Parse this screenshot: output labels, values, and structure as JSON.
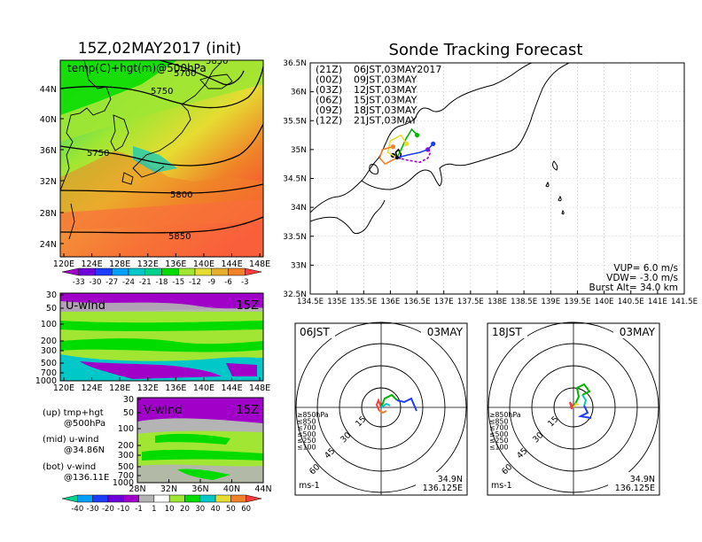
{
  "left": {
    "title": "15Z,02MAY2017 (init)",
    "map_label": "temp(C)+hgt(m)@500hPa",
    "contour_labels": [
      "5700",
      "5750",
      "5750",
      "5800",
      "5850",
      "5850"
    ],
    "lat_ticks": [
      "44N",
      "40N",
      "36N",
      "32N",
      "28N",
      "24N"
    ],
    "lon_ticks": [
      "120E",
      "124E",
      "128E",
      "132E",
      "136E",
      "140E",
      "144E",
      "148E"
    ],
    "temp_colorbar": [
      "-33",
      "-30",
      "-27",
      "-24",
      "-21",
      "-18",
      "-15",
      "-12",
      "-9",
      "-6",
      "-3"
    ],
    "temp_colors": [
      "#a000c8",
      "#6e00dc",
      "#1e3cff",
      "#00a0ff",
      "#00c8c8",
      "#00d28c",
      "#00dc00",
      "#a0e632",
      "#e6dc32",
      "#e6af2d",
      "#f08228",
      "#fa3c3c"
    ],
    "uwind_label": "U-wind",
    "uwind_time": "15Z",
    "uwind_p_ticks": [
      "30",
      "50",
      "100",
      "200",
      "300",
      "500",
      "700",
      "1000"
    ],
    "vwind_label": "V-wind",
    "vwind_time": "15Z",
    "vwind_p_ticks": [
      "30",
      "50",
      "100",
      "200",
      "300",
      "500",
      "700",
      "1000"
    ],
    "vwind_lat_ticks": [
      "28N",
      "32N",
      "36N",
      "40N",
      "44N"
    ],
    "legend": {
      "up": "(up) tmp+hgt",
      "up2": "@500hPa",
      "mid": "(mid) u-wind",
      "mid2": "@34.86N",
      "bot": "(bot) v-wind",
      "bot2": "@136.11E"
    },
    "wind_colorbar": [
      "-40",
      "-30",
      "-20",
      "-10",
      "-1",
      "1",
      "10",
      "20",
      "30",
      "40",
      "50",
      "60"
    ],
    "wind_colors": [
      "#00d28c",
      "#00a0ff",
      "#1e3cff",
      "#6e00dc",
      "#a000c8",
      "#b4b4b4",
      "#ffffff",
      "#a0e632",
      "#00dc00",
      "#00c8c8",
      "#e6dc32",
      "#f08228",
      "#fa3c3c"
    ]
  },
  "right": {
    "title": "Sonde Tracking Forecast",
    "lat_ticks": [
      "36.5N",
      "36N",
      "35.5N",
      "35N",
      "34.5N",
      "34N",
      "33.5N",
      "33N",
      "32.5N"
    ],
    "lon_ticks": [
      "134.5E",
      "135E",
      "135.5E",
      "136E",
      "136.5E",
      "137E",
      "137.5E",
      "138E",
      "138.5E",
      "139E",
      "139.5E",
      "140E",
      "140.5E",
      "141E",
      "141.5E"
    ],
    "launches": [
      {
        "code": "(21Z)",
        "time": "06JST,03MAY2017",
        "color": "#000000"
      },
      {
        "code": "(00Z)",
        "time": "09JST,03MAY",
        "color": "#a000c8"
      },
      {
        "code": "(03Z)",
        "time": "12JST,03MAY",
        "color": "#1e3cff"
      },
      {
        "code": "(06Z)",
        "time": "15JST,03MAY",
        "color": "#00b400"
      },
      {
        "code": "(09Z)",
        "time": "18JST,03MAY",
        "color": "#e6dc32"
      },
      {
        "code": "(12Z)",
        "time": "21JST,03MAY",
        "color": "#f08228"
      }
    ],
    "params": {
      "vup": "VUP=  6.0 m/s",
      "vdw": "VDW= -3.0 m/s",
      "burst": "Burst Alt= 34.0 km"
    }
  },
  "hodographs": [
    {
      "time": "06JST",
      "date": "03MAY",
      "lat": "34.9N",
      "lon": "136.125E",
      "unit": "ms-1",
      "rings": [
        "15",
        "30",
        "45",
        "60"
      ]
    },
    {
      "time": "18JST",
      "date": "03MAY",
      "lat": "34.9N",
      "lon": "136.125E",
      "unit": "ms-1",
      "rings": [
        "15",
        "30",
        "45",
        "60"
      ]
    }
  ],
  "hodo_legend": [
    {
      "label": "≥850hPa",
      "color": "#fa3c3c"
    },
    {
      "label": "≤850",
      "color": "#f08228"
    },
    {
      "label": "≤700",
      "color": "#e6dc32"
    },
    {
      "label": "≤500",
      "color": "#00b400"
    },
    {
      "label": "≤250",
      "color": "#00c8c8"
    },
    {
      "label": "≤100",
      "color": "#1e3cff"
    }
  ],
  "chart_data": [
    {
      "type": "heatmap",
      "title": "15Z,02MAY2017 (init)",
      "subtitle": "temp(C)+hgt(m)@500hPa",
      "xlim": [
        120,
        149
      ],
      "ylim": [
        22,
        47
      ],
      "colorbar": [
        -33,
        -30,
        -27,
        -24,
        -21,
        -18,
        -15,
        -12,
        -9,
        -6,
        -3
      ],
      "height_contours": [
        5700,
        5750,
        5800,
        5850
      ]
    },
    {
      "type": "line",
      "title": "Sonde Tracking Forecast",
      "xlim": [
        134.5,
        141.5
      ],
      "ylim": [
        32.5,
        36.5
      ],
      "series": [
        {
          "name": "(21Z)",
          "x": [
            136.125,
            136.1,
            136.15,
            136.2,
            136.18,
            136.05
          ],
          "y": [
            34.86,
            34.95,
            35.0,
            34.92,
            34.85,
            34.9
          ]
        },
        {
          "name": "(00Z)",
          "x": [
            136.125,
            136.3,
            136.55,
            136.7,
            136.75,
            136.7
          ],
          "y": [
            34.86,
            34.82,
            34.78,
            34.85,
            34.95,
            35.0
          ]
        },
        {
          "name": "(03Z)",
          "x": [
            136.125,
            136.3,
            136.55,
            136.7,
            136.8
          ],
          "y": [
            34.86,
            34.9,
            34.95,
            35.0,
            35.1
          ]
        },
        {
          "name": "(06Z)",
          "x": [
            136.125,
            136.2,
            136.3,
            136.4,
            136.5
          ],
          "y": [
            34.86,
            35.0,
            35.2,
            35.35,
            35.25
          ]
        },
        {
          "name": "(09Z)",
          "x": [
            136.125,
            135.95,
            136.0,
            136.2,
            136.3
          ],
          "y": [
            34.86,
            34.95,
            35.15,
            35.25,
            35.1
          ]
        },
        {
          "name": "(12Z)",
          "x": [
            136.125,
            135.9,
            135.8,
            135.85,
            136.05
          ],
          "y": [
            34.86,
            34.75,
            34.85,
            35.0,
            35.05
          ]
        }
      ]
    }
  ]
}
